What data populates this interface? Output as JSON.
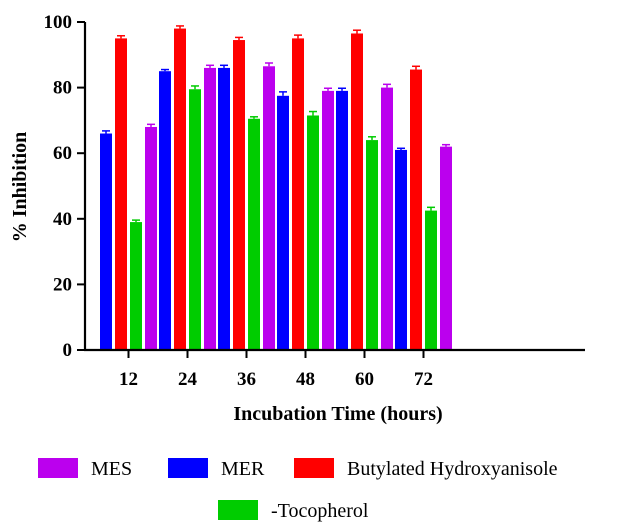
{
  "chart_data": {
    "type": "bar",
    "title": "",
    "xlabel": "Incubation Time (hours)",
    "ylabel": "% Inhibition",
    "ylim": [
      0,
      100
    ],
    "yticks": [
      0,
      20,
      40,
      60,
      80,
      100
    ],
    "categories": [
      "12",
      "24",
      "36",
      "48",
      "60",
      "72"
    ],
    "legend_position": "bottom",
    "grid": false,
    "series": [
      {
        "name": "MER",
        "color": "#0000ff",
        "values": [
          66,
          85,
          86,
          77.5,
          79,
          61
        ],
        "errors": [
          0.8,
          0.5,
          0.8,
          1.2,
          0.8,
          0.5
        ]
      },
      {
        "name": "Butylated Hydroxyanisole",
        "color": "#ff0000",
        "values": [
          95,
          98,
          94.5,
          95,
          96.5,
          85.5
        ],
        "errors": [
          0.8,
          0.8,
          0.8,
          1.0,
          1.0,
          1.0
        ]
      },
      {
        "name": "-Tocopherol",
        "color": "#00cc00",
        "values": [
          39,
          79.5,
          70.5,
          71.5,
          64,
          42.5
        ],
        "errors": [
          0.6,
          1.0,
          0.6,
          1.2,
          1.0,
          1.0
        ]
      },
      {
        "name": "MES",
        "color": "#bb00ee",
        "values": [
          68,
          86,
          86.5,
          79,
          80,
          62
        ],
        "errors": [
          0.8,
          0.8,
          1.0,
          0.8,
          1.0,
          0.6
        ]
      }
    ],
    "legend_order": [
      "MES",
      "MER",
      "Butylated Hydroxyanisole",
      "-Tocopherol"
    ]
  }
}
